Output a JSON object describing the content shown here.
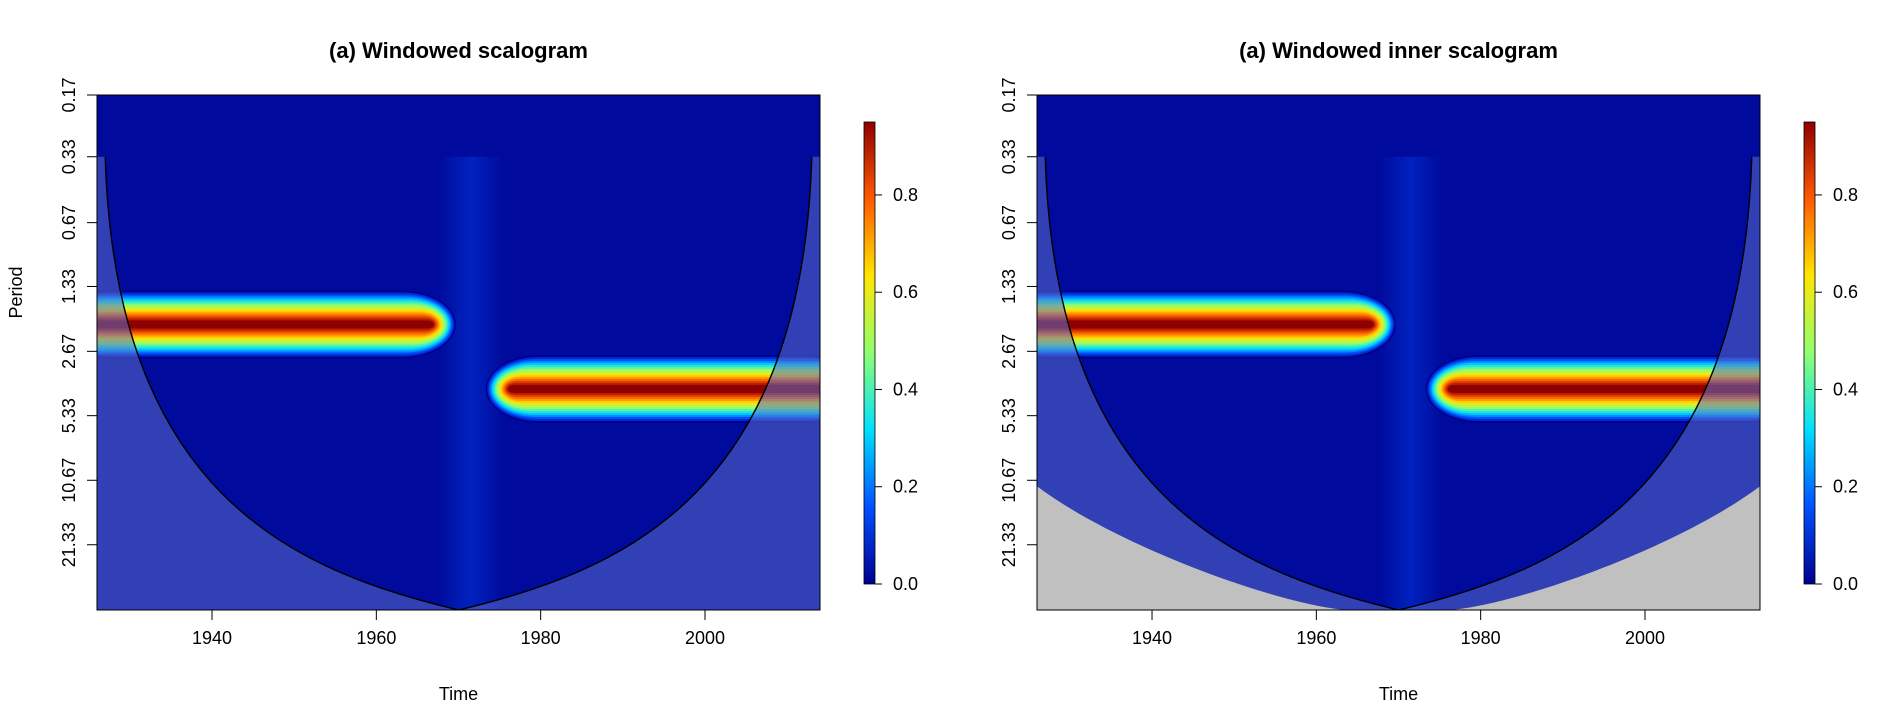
{
  "chart_data": [
    {
      "type": "heatmap",
      "title": "(a) Windowed scalogram",
      "xlabel": "Time",
      "ylabel": "Period",
      "xlim": [
        1926,
        2014
      ],
      "x_ticks": [
        1940,
        1960,
        1980,
        2000
      ],
      "y_ticks": [
        "0.17",
        "0.33",
        "0.67",
        "1.33",
        "2.67",
        "5.33",
        "10.67",
        "21.33"
      ],
      "y_scale": "log2",
      "ylim_period": [
        0.17,
        43
      ],
      "colorbar": {
        "ticks": [
          "0.0",
          "0.2",
          "0.4",
          "0.6",
          "0.8"
        ],
        "range": [
          0,
          0.95
        ],
        "palette": [
          "#00008f",
          "#0050ff",
          "#00dfff",
          "#8fff70",
          "#ffe600",
          "#ff5a00",
          "#8f0000"
        ]
      },
      "bands": [
        {
          "x_start": 1926,
          "x_end": 1967,
          "period": 2.0,
          "peak": 0.95
        },
        {
          "x_start": 1976,
          "x_end": 2014,
          "period": 4.0,
          "peak": 0.95
        }
      ],
      "cone_of_influence": {
        "apex_time": 1970,
        "apex_period": 43,
        "edge_period": 0.33
      },
      "outside_region": "none"
    },
    {
      "type": "heatmap",
      "title": "(a) Windowed inner scalogram",
      "xlabel": "Time",
      "ylabel": "",
      "xlim": [
        1926,
        2014
      ],
      "x_ticks": [
        1940,
        1960,
        1980,
        2000
      ],
      "y_ticks": [
        "0.17",
        "0.33",
        "0.67",
        "1.33",
        "2.67",
        "5.33",
        "10.67",
        "21.33"
      ],
      "y_scale": "log2",
      "ylim_period": [
        0.17,
        43
      ],
      "colorbar": {
        "ticks": [
          "0.0",
          "0.2",
          "0.4",
          "0.6",
          "0.8"
        ],
        "range": [
          0,
          0.95
        ],
        "palette": [
          "#00008f",
          "#0050ff",
          "#00dfff",
          "#8fff70",
          "#ffe600",
          "#ff5a00",
          "#8f0000"
        ]
      },
      "bands": [
        {
          "x_start": 1926,
          "x_end": 1967,
          "period": 2.0,
          "peak": 0.95
        },
        {
          "x_start": 1976,
          "x_end": 2014,
          "period": 4.0,
          "peak": 0.95
        }
      ],
      "cone_of_influence": {
        "apex_time": 1970,
        "apex_period": 43,
        "edge_period": 0.33
      },
      "outside_region": "grey"
    }
  ],
  "colors": {
    "shade": "#5a6ec8",
    "na_grey": "#c0c0c0",
    "background": "#ffffff"
  }
}
